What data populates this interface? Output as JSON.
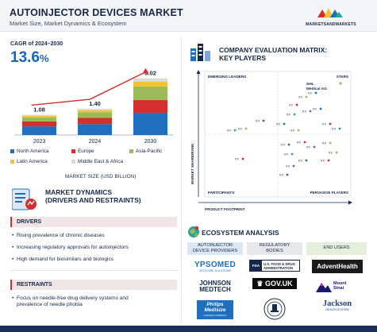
{
  "header": {
    "title": "AUTOINJECTOR DEVICES MARKET",
    "subtitle": "Market Size, Market Dynamics & Ecosystem",
    "brand": "MARKETSANDMARKETS"
  },
  "cagr": {
    "label": "CAGR of 2024–2030",
    "value": "13.6",
    "unit": "%"
  },
  "chart_data": {
    "type": "bar",
    "stacked": true,
    "categories": [
      "2023",
      "2024",
      "2030"
    ],
    "totals": [
      "1.08",
      "1.40",
      "3.02"
    ],
    "xlabel": "MARKET SIZE (USD BILLION)",
    "ylim": [
      0,
      3.3
    ],
    "series": [
      {
        "name": "North America",
        "color": "#1f6fbf",
        "values": [
          0.46,
          0.58,
          1.18
        ]
      },
      {
        "name": "Europe",
        "color": "#d32f2f",
        "values": [
          0.26,
          0.33,
          0.68
        ]
      },
      {
        "name": "Asia-Pacific",
        "color": "#9bbb59",
        "values": [
          0.22,
          0.3,
          0.72
        ]
      },
      {
        "name": "Latin America",
        "color": "#f2c233",
        "values": [
          0.08,
          0.11,
          0.26
        ]
      },
      {
        "name": "Middle East & Africa",
        "color": "#d9d9d9",
        "values": [
          0.06,
          0.08,
          0.18
        ]
      }
    ],
    "trend_arrow_color": "#d32f2f"
  },
  "company_eval": {
    "title_line1": "COMPANY EVALUATION MATRIX:",
    "title_line2": "KEY PLAYERS",
    "quadrants": {
      "top_left": "EMERGING LEADERS",
      "top_right": "STARS",
      "bottom_left": "PARTICIPANTS",
      "bottom_right": "PERVASIVE PLAYERS"
    },
    "y_axis": "MARKET SHARE/RANK",
    "x_axis": "PRODUCT FOOTPRINT",
    "highlight": "SHL Medical AG",
    "highlight_line1": "SHL",
    "highlight_line2": "Medical AG",
    "placeholder": "XX",
    "point_colors": [
      "#1f6fbf",
      "#d32f2f",
      "#9bbb59",
      "#26a69a",
      "#7e57c2"
    ]
  },
  "market_dynamics": {
    "title_line1": "MARKET DYNAMICS",
    "title_line2": "(DRIVERS AND RESTRAINTS)",
    "drivers_label": "DRIVERS",
    "drivers": [
      "Rising prevalence of chronic diseases",
      "Increasing regulatory approvals for autoinjectors",
      "High demand for biosimilars and biologics"
    ],
    "restraints_label": "RESTRAINTS",
    "restraints": [
      "Focus on needle-free drug delivery systems and",
      "prevalence of needle phobia"
    ]
  },
  "ecosystem": {
    "title": "ECOSYSTEM ANALYSIS",
    "columns": [
      {
        "line1": "AUTOINJECTOR",
        "line2": "DEVICE PROVIDERS",
        "color": "#dbe7f5"
      },
      {
        "line1": "REGULATORY",
        "line2": "BODIES",
        "color": "#e6e8ec"
      },
      {
        "line1": "END USERS",
        "line2": "",
        "color": "#e4efdc"
      }
    ],
    "logos": {
      "ypsomed": "YPSOMED",
      "ypsomed_tag": "SELFCARE SOLUTIONS",
      "jnj_line1": "JOHNSON",
      "jnj_line2": "MEDTECH",
      "philips_line1": "Philips",
      "philips_line2": "Medisize",
      "philips_line3": "A MOLEX COMPANY",
      "fda_line1": "U.S. FOOD & DRUG",
      "fda_line2": "ADMINISTRATION",
      "govuk": "GOV.UK",
      "advent": "AdventHealth",
      "sinai_line1": "Mount",
      "sinai_line2": "Sinai",
      "jackson": "Jackson",
      "jackson_tag": "HEALTH SYSTEM"
    }
  }
}
